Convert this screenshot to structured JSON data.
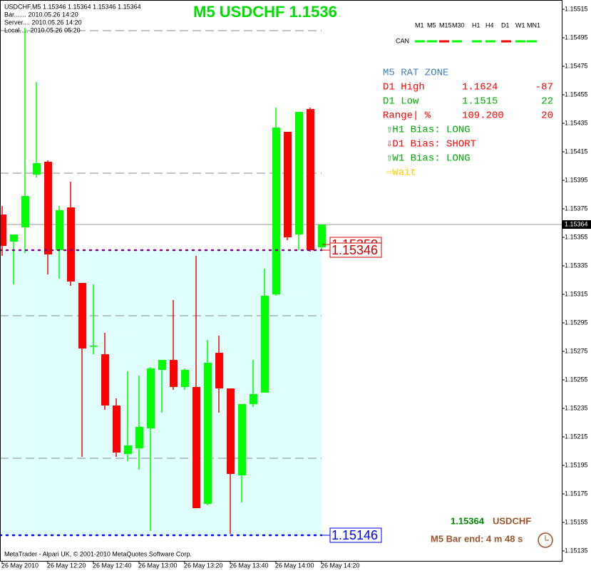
{
  "chart_data": {
    "type": "candlestick",
    "title": "M5 USDCHF 1.1536",
    "info_lines": [
      "USDCHF,M5  1.15346 1.15364 1.15346 1.15364",
      "Bar....... 2010.05.26 14:20",
      "Server.... 2010.05.26 14:20",
      "Local..... 2010.05.26 05:20"
    ],
    "categories": [
      "26 May 2010",
      null,
      null,
      null,
      "26 May 12:20",
      null,
      null,
      null,
      "26 May 12:40",
      null,
      null,
      null,
      "26 May 13:00",
      null,
      null,
      null,
      "26 May 13:20",
      null,
      null,
      null,
      "26 May 13:40",
      null,
      null,
      null,
      "26 May 14:00",
      null,
      null,
      null,
      "26 May 14:20"
    ],
    "open": [
      1.15371,
      1.15352,
      1.15362,
      1.15399,
      1.15408,
      1.15346,
      1.15376,
      1.15323,
      1.15279,
      1.15273,
      1.15237,
      1.15203,
      1.15207,
      1.15221,
      1.15262,
      1.15269,
      1.1525,
      1.1525,
      1.15168,
      1.15274,
      1.15249,
      1.15188,
      1.15238,
      1.15246,
      1.15315,
      1.15429,
      1.15357,
      1.15445,
      1.15348
    ],
    "high": [
      1.15377,
      1.15357,
      1.15502,
      1.15464,
      1.15409,
      1.15377,
      1.15394,
      1.15323,
      1.15322,
      1.15288,
      1.15242,
      1.15261,
      1.15258,
      1.15264,
      1.15269,
      1.15311,
      1.15263,
      1.15342,
      1.15283,
      1.15286,
      1.15249,
      1.15238,
      1.15269,
      1.15333,
      1.15446,
      1.15429,
      1.15443,
      1.15446,
      1.15364
    ],
    "low": [
      1.15342,
      1.15322,
      1.15344,
      1.15397,
      1.15329,
      1.15326,
      1.15321,
      1.15201,
      1.15273,
      1.15234,
      1.15201,
      1.15198,
      1.15192,
      1.15149,
      1.15232,
      1.15248,
      1.15248,
      1.15165,
      1.15167,
      1.15232,
      1.15147,
      1.15169,
      1.15236,
      1.15246,
      1.15314,
      1.15353,
      1.15346,
      1.15345,
      1.15346
    ],
    "close": [
      1.15349,
      1.15357,
      1.15384,
      1.15407,
      1.15343,
      1.15374,
      1.15324,
      1.15277,
      1.15279,
      1.15237,
      1.15204,
      1.15209,
      1.15222,
      1.15263,
      1.15269,
      1.1525,
      1.15262,
      1.15165,
      1.15267,
      1.15249,
      1.15189,
      1.15238,
      1.15245,
      1.15314,
      1.15432,
      1.15355,
      1.15443,
      1.15346,
      1.15364
    ],
    "up_color": "#00ff00",
    "down_color": "#ff0000",
    "ylim": [
      1.15128,
      1.155215
    ],
    "yticks": [
      1.15515,
      1.15495,
      1.15475,
      1.15455,
      1.15435,
      1.15415,
      1.15395,
      1.15375,
      1.15355,
      1.15335,
      1.15315,
      1.15295,
      1.15275,
      1.15255,
      1.15235,
      1.15215,
      1.15195,
      1.15175,
      1.15155,
      1.15135
    ],
    "round_levels": [
      1.155,
      1.154,
      1.153,
      1.152
    ],
    "current_price": 1.15364,
    "levels": [
      {
        "value": 1.1535,
        "label": "1.15350",
        "color": "#cc0000"
      },
      {
        "value": 1.15346,
        "label": "1.15346",
        "color": "#cc0000"
      },
      {
        "value": 1.15146,
        "label": "1.15146",
        "color": "#0000ff"
      }
    ],
    "zone_color": "#e0ffff",
    "timeframes": [
      "M1",
      "M5",
      "M15",
      "M30",
      "H1",
      "H4",
      "D1",
      "W1",
      "MN1"
    ],
    "can_label": "CAN",
    "can_colors": [
      "#00ff00",
      "#00ff00",
      "#ff0000",
      "#00ff00",
      "#00ff00",
      "#00ff00",
      "#ff0000",
      "#00ff00",
      "#00ff00"
    ],
    "panel": {
      "title": "M5 RAT ZONE",
      "rows": [
        {
          "cells": [
            "D1 High",
            "1.1624",
            "-87"
          ],
          "color": "#ff0000"
        },
        {
          "cells": [
            "D1 Low",
            "1.1515",
            "22"
          ],
          "color": "#00aa00"
        },
        {
          "cells": [
            "Range| %",
            "109.200",
            "20"
          ],
          "color": "#ff0000"
        }
      ],
      "bias": [
        {
          "text": "⇧H1 Bias: LONG",
          "color": "#00aa00"
        },
        {
          "text": "⇩D1 Bias: SHORT",
          "color": "#ff0000"
        },
        {
          "text": "⇧W1 Bias: LONG",
          "color": "#00aa00"
        },
        {
          "text": "⇨Wait",
          "color": "#ffcc00"
        }
      ]
    },
    "status_price": "1.15364",
    "status_symbol": "USDCHF",
    "bar_end": "M5 Bar end: 4 m 48 s",
    "footer": "MetaTrader - Alpari UK, © 2001-2010 MetaQuotes Software Corp."
  }
}
